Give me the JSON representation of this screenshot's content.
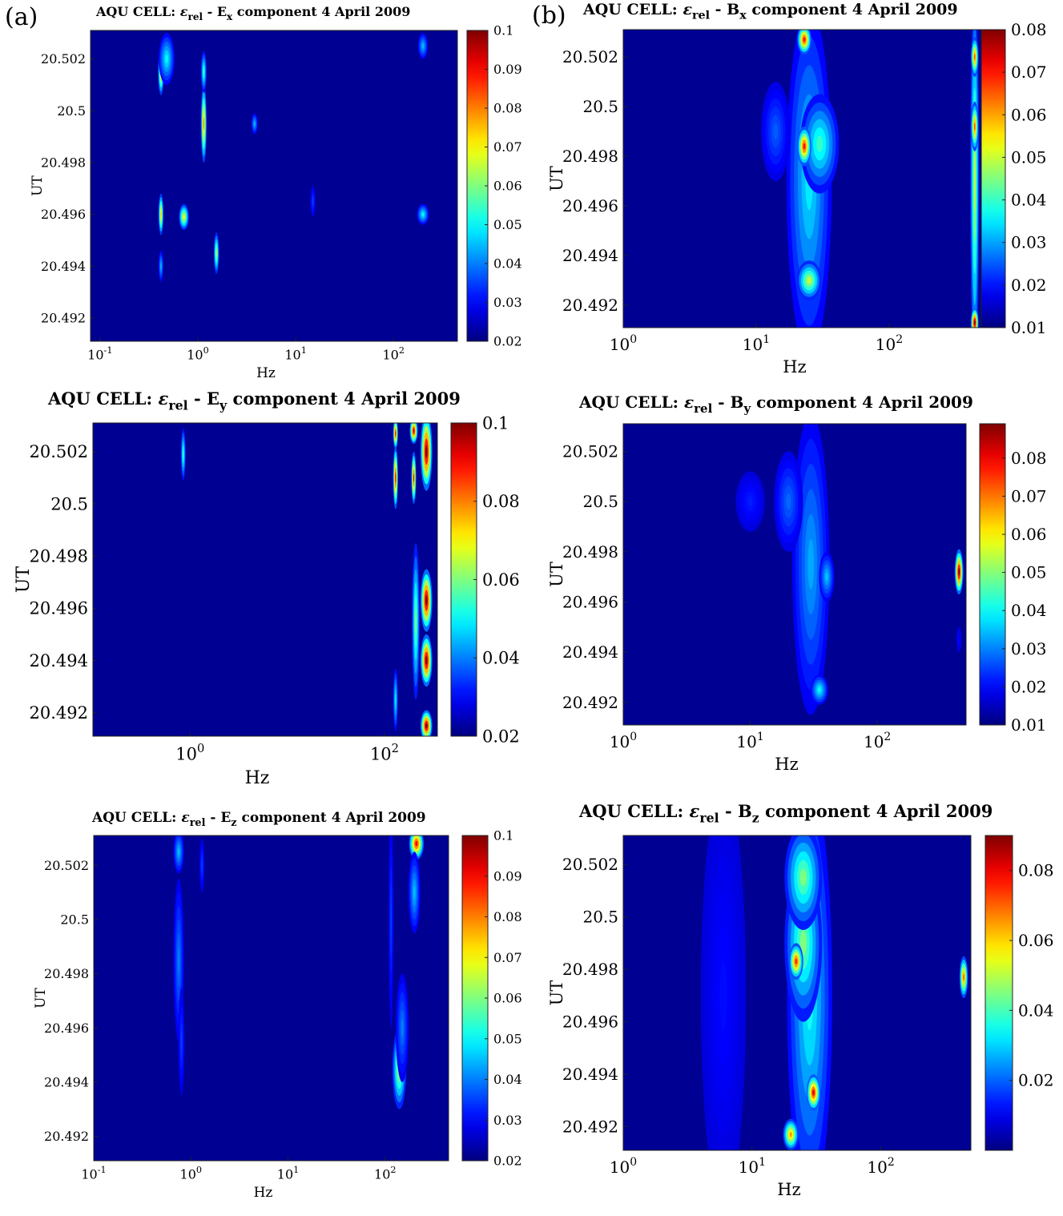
{
  "panel_labels": {
    "a": "(a)",
    "b": "(b)"
  },
  "colormap": [
    "#00007f",
    "#0000ff",
    "#007fff",
    "#00ffff",
    "#7fff7f",
    "#ffff00",
    "#ff7f00",
    "#ff0000",
    "#7f0000"
  ],
  "chart_data": [
    {
      "id": "ex",
      "type": "heatmap",
      "title": {
        "main": "AQU CELL: ",
        "eps": "ε",
        "eps_sub": "rel",
        "mid": " - E",
        "comp_sub": "x",
        "tail": "  component  4 April 2009"
      },
      "xlabel": "Hz",
      "ylabel": "UT",
      "xscale": "log",
      "xlim": [
        0.08,
        450
      ],
      "xticks": [
        {
          "base": "10",
          "exp": "-1",
          "v": 0.1
        },
        {
          "base": "10",
          "exp": "0",
          "v": 1
        },
        {
          "base": "10",
          "exp": "1",
          "v": 10
        },
        {
          "base": "10",
          "exp": "2",
          "v": 100
        }
      ],
      "ylim": [
        20.4911,
        20.5031
      ],
      "yticks": [
        {
          "label": "20.502",
          "v": 20.502
        },
        {
          "label": "20.5",
          "v": 20.5
        },
        {
          "label": "20.498",
          "v": 20.498
        },
        {
          "label": "20.496",
          "v": 20.496
        },
        {
          "label": "20.494",
          "v": 20.494
        },
        {
          "label": "20.492",
          "v": 20.492
        }
      ],
      "cmin": 0.02,
      "cmax": 0.1,
      "cticks": [
        {
          "label": "0.1",
          "v": 0.1
        },
        {
          "label": "0.09",
          "v": 0.09
        },
        {
          "label": "0.08",
          "v": 0.08
        },
        {
          "label": "0.07",
          "v": 0.07
        },
        {
          "label": "0.06",
          "v": 0.06
        },
        {
          "label": "0.05",
          "v": 0.05
        },
        {
          "label": "0.04",
          "v": 0.04
        },
        {
          "label": "0.03",
          "v": 0.03
        },
        {
          "label": "0.02",
          "v": 0.02
        }
      ],
      "hotspots": [
        {
          "f": 0.42,
          "t": 20.5015,
          "df": 0.03,
          "dt": 0.0009,
          "v": 0.075
        },
        {
          "f": 0.48,
          "t": 20.502,
          "df": 0.1,
          "dt": 0.001,
          "v": 0.05
        },
        {
          "f": 0.42,
          "t": 20.496,
          "df": 0.025,
          "dt": 0.0008,
          "v": 0.075
        },
        {
          "f": 0.42,
          "t": 20.494,
          "df": 0.025,
          "dt": 0.0006,
          "v": 0.045
        },
        {
          "f": 0.72,
          "t": 20.4959,
          "df": 0.09,
          "dt": 0.0005,
          "v": 0.07
        },
        {
          "f": 1.15,
          "t": 20.4995,
          "df": 0.08,
          "dt": 0.0015,
          "v": 0.08
        },
        {
          "f": 1.15,
          "t": 20.5015,
          "df": 0.08,
          "dt": 0.0008,
          "v": 0.055
        },
        {
          "f": 1.55,
          "t": 20.4945,
          "df": 0.1,
          "dt": 0.0008,
          "v": 0.065
        },
        {
          "f": 3.8,
          "t": 20.4995,
          "df": 0.3,
          "dt": 0.0004,
          "v": 0.045
        },
        {
          "f": 15,
          "t": 20.4965,
          "df": 0.6,
          "dt": 0.0006,
          "v": 0.035
        },
        {
          "f": 200,
          "t": 20.496,
          "df": 30,
          "dt": 0.0004,
          "v": 0.05
        },
        {
          "f": 200,
          "t": 20.5025,
          "df": 25,
          "dt": 0.0005,
          "v": 0.045
        }
      ]
    },
    {
      "id": "bx",
      "type": "heatmap",
      "title": {
        "main": "AQU CELL: ",
        "eps": "ε",
        "eps_sub": "rel",
        "mid": " -  B",
        "comp_sub": "x",
        "tail": "  component 4 April 2009"
      },
      "xlabel": "Hz",
      "ylabel": "UT",
      "xscale": "log",
      "xlim": [
        1,
        500
      ],
      "xticks": [
        {
          "base": "10",
          "exp": "0",
          "v": 1
        },
        {
          "base": "10",
          "exp": "1",
          "v": 10
        },
        {
          "base": "10",
          "exp": "2",
          "v": 100
        }
      ],
      "ylim": [
        20.4911,
        20.5031
      ],
      "yticks": [
        {
          "label": "20.502",
          "v": 20.502
        },
        {
          "label": "20.5",
          "v": 20.5
        },
        {
          "label": "20.498",
          "v": 20.498
        },
        {
          "label": "20.496",
          "v": 20.496
        },
        {
          "label": "20.494",
          "v": 20.494
        },
        {
          "label": "20.492",
          "v": 20.492
        }
      ],
      "cmin": 0.01,
      "cmax": 0.08,
      "cticks": [
        {
          "label": "0.08",
          "v": 0.08
        },
        {
          "label": "0.07",
          "v": 0.07
        },
        {
          "label": "0.06",
          "v": 0.06
        },
        {
          "label": "0.05",
          "v": 0.05
        },
        {
          "label": "0.04",
          "v": 0.04
        },
        {
          "label": "0.03",
          "v": 0.03
        },
        {
          "label": "0.02",
          "v": 0.02
        },
        {
          "label": "0.01",
          "v": 0.01
        }
      ],
      "hotspots": [
        {
          "f": 25,
          "t": 20.497,
          "df": 12,
          "dt": 0.007,
          "v": 0.035
        },
        {
          "f": 30,
          "t": 20.4985,
          "df": 12,
          "dt": 0.002,
          "v": 0.04
        },
        {
          "f": 14,
          "t": 20.499,
          "df": 4,
          "dt": 0.002,
          "v": 0.025
        },
        {
          "f": 23,
          "t": 20.4984,
          "df": 3,
          "dt": 0.0008,
          "v": 0.07
        },
        {
          "f": 23,
          "t": 20.5027,
          "df": 3,
          "dt": 0.0006,
          "v": 0.07
        },
        {
          "f": 25,
          "t": 20.493,
          "df": 6,
          "dt": 0.0008,
          "v": 0.05
        },
        {
          "f": 440,
          "t": 20.497,
          "df": 35,
          "dt": 0.0075,
          "v": 0.05
        },
        {
          "f": 440,
          "t": 20.4992,
          "df": 30,
          "dt": 0.001,
          "v": 0.065
        },
        {
          "f": 440,
          "t": 20.502,
          "df": 30,
          "dt": 0.0008,
          "v": 0.065
        },
        {
          "f": 440,
          "t": 20.4913,
          "df": 30,
          "dt": 0.0006,
          "v": 0.08
        }
      ]
    },
    {
      "id": "ey",
      "type": "heatmap",
      "title": {
        "main": "AQU CELL: ",
        "eps": "ε",
        "eps_sub": "rel",
        "mid": " - E",
        "comp_sub": "y",
        "tail": "  component 4 April 2009"
      },
      "xlabel": "Hz",
      "ylabel": "UT",
      "xscale": "log",
      "xlim": [
        0.1,
        350
      ],
      "xticks": [
        {
          "base": "10",
          "exp": "0",
          "v": 1
        },
        {
          "base": "10",
          "exp": "2",
          "v": 100
        }
      ],
      "ylim": [
        20.4911,
        20.5031
      ],
      "yticks": [
        {
          "label": "20.502",
          "v": 20.502
        },
        {
          "label": "20.5",
          "v": 20.5
        },
        {
          "label": "20.498",
          "v": 20.498
        },
        {
          "label": "20.496",
          "v": 20.496
        },
        {
          "label": "20.494",
          "v": 20.494
        },
        {
          "label": "20.492",
          "v": 20.492
        }
      ],
      "cmin": 0.02,
      "cmax": 0.1,
      "cticks": [
        {
          "label": "0.1",
          "v": 0.1
        },
        {
          "label": "0.08",
          "v": 0.08
        },
        {
          "label": "0.06",
          "v": 0.06
        },
        {
          "label": "0.04",
          "v": 0.04
        },
        {
          "label": "0.02",
          "v": 0.02
        }
      ],
      "hotspots": [
        {
          "f": 0.85,
          "t": 20.5019,
          "df": 0.03,
          "dt": 0.001,
          "v": 0.055
        },
        {
          "f": 130,
          "t": 20.501,
          "df": 8,
          "dt": 0.0012,
          "v": 0.09
        },
        {
          "f": 130,
          "t": 20.5027,
          "df": 8,
          "dt": 0.0006,
          "v": 0.09
        },
        {
          "f": 200,
          "t": 20.501,
          "df": 12,
          "dt": 0.001,
          "v": 0.09
        },
        {
          "f": 200,
          "t": 20.5028,
          "df": 20,
          "dt": 0.0005,
          "v": 0.095
        },
        {
          "f": 270,
          "t": 20.502,
          "df": 40,
          "dt": 0.0015,
          "v": 0.1
        },
        {
          "f": 270,
          "t": 20.4963,
          "df": 40,
          "dt": 0.0012,
          "v": 0.1
        },
        {
          "f": 270,
          "t": 20.494,
          "df": 40,
          "dt": 0.001,
          "v": 0.1
        },
        {
          "f": 210,
          "t": 20.4955,
          "df": 20,
          "dt": 0.003,
          "v": 0.06
        },
        {
          "f": 130,
          "t": 20.4925,
          "df": 8,
          "dt": 0.0012,
          "v": 0.05
        },
        {
          "f": 270,
          "t": 20.4915,
          "df": 40,
          "dt": 0.0006,
          "v": 0.1
        }
      ]
    },
    {
      "id": "by",
      "type": "heatmap",
      "title": {
        "main": "AQU CELL: ",
        "eps": "ε",
        "eps_sub": "rel",
        "mid": " - B",
        "comp_sub": "y",
        "tail": "  component 4 April 2009"
      },
      "xlabel": "Hz",
      "ylabel": "UT",
      "xscale": "log",
      "xlim": [
        1,
        500
      ],
      "xticks": [
        {
          "base": "10",
          "exp": "0",
          "v": 1
        },
        {
          "base": "10",
          "exp": "1",
          "v": 10
        },
        {
          "base": "10",
          "exp": "2",
          "v": 100
        }
      ],
      "ylim": [
        20.4911,
        20.5031
      ],
      "yticks": [
        {
          "label": "20.502",
          "v": 20.502
        },
        {
          "label": "20.5",
          "v": 20.5
        },
        {
          "label": "20.498",
          "v": 20.498
        },
        {
          "label": "20.496",
          "v": 20.496
        },
        {
          "label": "20.494",
          "v": 20.494
        },
        {
          "label": "20.492",
          "v": 20.492
        }
      ],
      "cmin": 0.01,
      "cmax": 0.089,
      "cticks": [
        {
          "label": "0.08",
          "v": 0.08
        },
        {
          "label": "0.07",
          "v": 0.07
        },
        {
          "label": "0.06",
          "v": 0.06
        },
        {
          "label": "0.05",
          "v": 0.05
        },
        {
          "label": "0.04",
          "v": 0.04
        },
        {
          "label": "0.03",
          "v": 0.03
        },
        {
          "label": "0.02",
          "v": 0.02
        },
        {
          "label": "0.01",
          "v": 0.01
        }
      ],
      "hotspots": [
        {
          "f": 30,
          "t": 20.4975,
          "df": 12,
          "dt": 0.006,
          "v": 0.033
        },
        {
          "f": 20,
          "t": 20.5,
          "df": 6,
          "dt": 0.002,
          "v": 0.028
        },
        {
          "f": 10,
          "t": 20.5,
          "df": 3,
          "dt": 0.0012,
          "v": 0.022
        },
        {
          "f": 35,
          "t": 20.4925,
          "df": 6,
          "dt": 0.0006,
          "v": 0.04
        },
        {
          "f": 40,
          "t": 20.497,
          "df": 6,
          "dt": 0.001,
          "v": 0.035
        },
        {
          "f": 440,
          "t": 20.4972,
          "df": 35,
          "dt": 0.0009,
          "v": 0.088
        },
        {
          "f": 440,
          "t": 20.4945,
          "df": 20,
          "dt": 0.0005,
          "v": 0.02
        }
      ]
    },
    {
      "id": "ez",
      "type": "heatmap",
      "title": {
        "main": "AQU CELL: ",
        "eps": "ε",
        "eps_sub": "rel",
        "mid": " - E",
        "comp_sub": "z",
        "tail": "  component  4 April 2009"
      },
      "xlabel": "Hz",
      "ylabel": "UT",
      "xscale": "log",
      "xlim": [
        0.1,
        450
      ],
      "xticks": [
        {
          "base": "10",
          "exp": "-1",
          "v": 0.1
        },
        {
          "base": "10",
          "exp": "0",
          "v": 1
        },
        {
          "base": "10",
          "exp": "1",
          "v": 10
        },
        {
          "base": "10",
          "exp": "2",
          "v": 100
        }
      ],
      "ylim": [
        20.4911,
        20.5031
      ],
      "yticks": [
        {
          "label": "20.502",
          "v": 20.502
        },
        {
          "label": "20.5",
          "v": 20.5
        },
        {
          "label": "20.498",
          "v": 20.498
        },
        {
          "label": "20.496",
          "v": 20.496
        },
        {
          "label": "20.494",
          "v": 20.494
        },
        {
          "label": "20.492",
          "v": 20.492
        }
      ],
      "cmin": 0.02,
      "cmax": 0.1,
      "cticks": [
        {
          "label": "0.1",
          "v": 0.1
        },
        {
          "label": "0.09",
          "v": 0.09
        },
        {
          "label": "0.08",
          "v": 0.08
        },
        {
          "label": "0.07",
          "v": 0.07
        },
        {
          "label": "0.06",
          "v": 0.06
        },
        {
          "label": "0.05",
          "v": 0.05
        },
        {
          "label": "0.04",
          "v": 0.04
        },
        {
          "label": "0.03",
          "v": 0.03
        },
        {
          "label": "0.02",
          "v": 0.02
        }
      ],
      "hotspots": [
        {
          "f": 0.75,
          "t": 20.4985,
          "df": 0.1,
          "dt": 0.003,
          "v": 0.04
        },
        {
          "f": 0.75,
          "t": 20.5025,
          "df": 0.1,
          "dt": 0.0008,
          "v": 0.045
        },
        {
          "f": 0.8,
          "t": 20.4955,
          "df": 0.06,
          "dt": 0.002,
          "v": 0.035
        },
        {
          "f": 1.3,
          "t": 20.502,
          "df": 0.08,
          "dt": 0.001,
          "v": 0.035
        },
        {
          "f": 140,
          "t": 20.4945,
          "df": 25,
          "dt": 0.0015,
          "v": 0.065
        },
        {
          "f": 150,
          "t": 20.496,
          "df": 25,
          "dt": 0.002,
          "v": 0.04
        },
        {
          "f": 210,
          "t": 20.5028,
          "df": 40,
          "dt": 0.0006,
          "v": 0.09
        },
        {
          "f": 200,
          "t": 20.501,
          "df": 30,
          "dt": 0.0015,
          "v": 0.045
        },
        {
          "f": 115,
          "t": 20.5,
          "df": 6,
          "dt": 0.004,
          "v": 0.035
        }
      ]
    },
    {
      "id": "bz",
      "type": "heatmap",
      "title": {
        "main": "AQU CELL: ",
        "eps": "ε",
        "eps_sub": "rel",
        "mid": " - B",
        "comp_sub": "z",
        "tail": "  component 4 April 2009"
      },
      "xlabel": "Hz",
      "ylabel": "UT",
      "xscale": "log",
      "xlim": [
        1,
        500
      ],
      "xticks": [
        {
          "base": "10",
          "exp": "0",
          "v": 1
        },
        {
          "base": "10",
          "exp": "1",
          "v": 10
        },
        {
          "base": "10",
          "exp": "2",
          "v": 100
        }
      ],
      "ylim": [
        20.4911,
        20.5031
      ],
      "yticks": [
        {
          "label": "20.502",
          "v": 20.502
        },
        {
          "label": "20.5",
          "v": 20.5
        },
        {
          "label": "20.498",
          "v": 20.498
        },
        {
          "label": "20.496",
          "v": 20.496
        },
        {
          "label": "20.494",
          "v": 20.494
        },
        {
          "label": "20.492",
          "v": 20.492
        }
      ],
      "cmin": 0.0,
      "cmax": 0.09,
      "cticks": [
        {
          "label": "0.08",
          "v": 0.08
        },
        {
          "label": "0.06",
          "v": 0.06
        },
        {
          "label": "0.04",
          "v": 0.04
        },
        {
          "label": "0.02",
          "v": 0.02
        }
      ],
      "hotspots": [
        {
          "f": 28,
          "t": 20.497,
          "df": 14,
          "dt": 0.008,
          "v": 0.035
        },
        {
          "f": 25,
          "t": 20.499,
          "df": 10,
          "dt": 0.003,
          "v": 0.045
        },
        {
          "f": 22,
          "t": 20.4983,
          "df": 3,
          "dt": 0.0007,
          "v": 0.075
        },
        {
          "f": 30,
          "t": 20.4933,
          "df": 4,
          "dt": 0.0007,
          "v": 0.08
        },
        {
          "f": 20,
          "t": 20.4917,
          "df": 3,
          "dt": 0.0006,
          "v": 0.065
        },
        {
          "f": 25,
          "t": 20.5015,
          "df": 10,
          "dt": 0.002,
          "v": 0.045
        },
        {
          "f": 440,
          "t": 20.4977,
          "df": 35,
          "dt": 0.0008,
          "v": 0.07
        },
        {
          "f": 6,
          "t": 20.497,
          "df": 3,
          "dt": 0.008,
          "v": 0.012
        }
      ]
    }
  ]
}
